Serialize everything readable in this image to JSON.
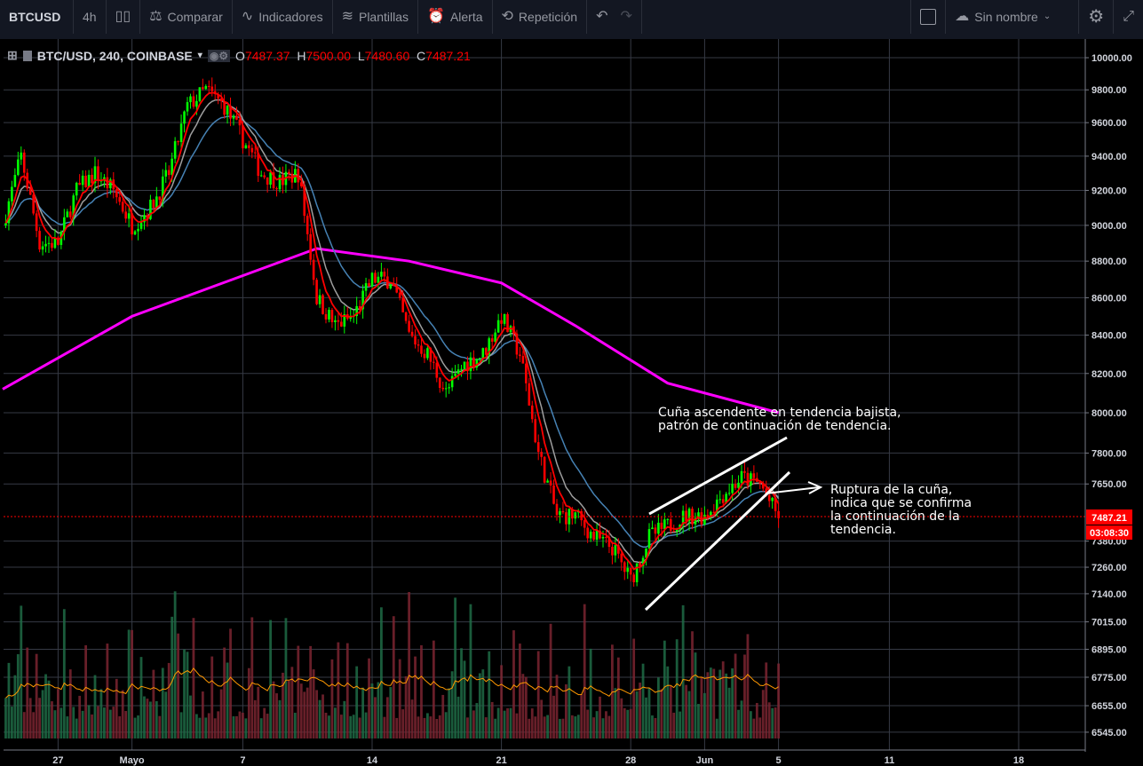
{
  "toolbar": {
    "symbol": "BTCUSD",
    "interval": "4h",
    "compare": "Comparar",
    "indicators": "Indicadores",
    "templates": "Plantillas",
    "alert": "Alerta",
    "replay": "Repetición",
    "layout_name": "Sin nombre",
    "icons": [
      "candles-icon",
      "compare-icon",
      "indicators-icon",
      "templates-icon",
      "alarm-icon",
      "replay-icon",
      "undo-icon",
      "redo-icon",
      "square-icon",
      "cloud-icon",
      "chevron-down-icon",
      "gear-icon",
      "fullscreen-icon"
    ]
  },
  "legend": {
    "title": "BTC/USD, 240, COINBASE",
    "o_label": "O",
    "o": "7487.37",
    "h_label": "H",
    "h": "7500.00",
    "l_label": "L",
    "l": "7480.60",
    "c_label": "C",
    "c": "7487.21"
  },
  "annotations": {
    "wedge": [
      "Cuña ascendente en tendencia bajista,",
      "patrón de continuación de tendencia."
    ],
    "breakout": [
      "Ruptura de la cuña,",
      "indica que se confirma",
      "la continuación de la",
      "tendencia."
    ]
  },
  "price_badge": {
    "price": "7487.21",
    "countdown": "03:08:30"
  },
  "colors": {
    "up": "#00ff00",
    "down": "#ff0000",
    "ma_long": "#ff00ff",
    "ema_fast": "#ff0000",
    "ema_mid": "#9e9e9e",
    "ema_slow": "#4682b4",
    "vol_ma": "#ff9800",
    "background": "#000000",
    "toolbar": "#131722"
  },
  "chart_data": {
    "type": "candlestick",
    "symbol": "BTC/USD",
    "interval_minutes": 240,
    "y_scale": "log",
    "ylim": [
      6500,
      10050
    ],
    "y_ticks": [
      "10000.00",
      "9800.00",
      "9600.00",
      "9400.00",
      "9200.00",
      "9000.00",
      "8800.00",
      "8600.00",
      "8400.00",
      "8200.00",
      "8000.00",
      "7800.00",
      "7650.00",
      "7380.00",
      "7260.00",
      "7140.00",
      "7015.00",
      "6895.00",
      "6775.00",
      "6655.00",
      "6545.00"
    ],
    "x_ticks": [
      {
        "label": "27",
        "date": "2018-04-27"
      },
      {
        "label": "Mayo",
        "date": "2018-05-01"
      },
      {
        "label": "7",
        "date": "2018-05-07"
      },
      {
        "label": "14",
        "date": "2018-05-14"
      },
      {
        "label": "21",
        "date": "2018-05-21"
      },
      {
        "label": "28",
        "date": "2018-05-28"
      },
      {
        "label": "Jun",
        "date": "2018-06-01"
      },
      {
        "label": "5",
        "date": "2018-06-05"
      },
      {
        "label": "11",
        "date": "2018-06-11"
      },
      {
        "label": "18",
        "date": "2018-06-18"
      }
    ],
    "grid": true,
    "daily_close_approx": {
      "dates": [
        "04-24",
        "04-25",
        "04-26",
        "04-27",
        "04-28",
        "04-29",
        "04-30",
        "05-01",
        "05-02",
        "05-03",
        "05-04",
        "05-05",
        "05-06",
        "05-07",
        "05-08",
        "05-09",
        "05-10",
        "05-11",
        "05-12",
        "05-13",
        "05-14",
        "05-15",
        "05-16",
        "05-17",
        "05-18",
        "05-19",
        "05-20",
        "05-21",
        "05-22",
        "05-23",
        "05-24",
        "05-25",
        "05-26",
        "05-27",
        "05-28",
        "05-29",
        "05-30",
        "05-31",
        "06-01",
        "06-02",
        "06-03",
        "06-04",
        "06-05"
      ],
      "values": [
        9000,
        9400,
        8900,
        8900,
        9200,
        9300,
        9200,
        9000,
        9100,
        9300,
        9700,
        9800,
        9700,
        9500,
        9300,
        9250,
        9300,
        8600,
        8450,
        8500,
        8700,
        8700,
        8400,
        8300,
        8100,
        8250,
        8300,
        8500,
        8300,
        7800,
        7500,
        7500,
        7400,
        7350,
        7200,
        7400,
        7450,
        7500,
        7500,
        7600,
        7680,
        7650,
        7487
      ]
    },
    "ma_long_approx": {
      "dates": [
        "04-24",
        "05-01",
        "05-11",
        "05-16",
        "05-21",
        "05-25",
        "05-30",
        "06-05"
      ],
      "values": [
        8120,
        8500,
        8870,
        8800,
        8680,
        8450,
        8150,
        8000
      ]
    },
    "last_price": 7487.21
  }
}
